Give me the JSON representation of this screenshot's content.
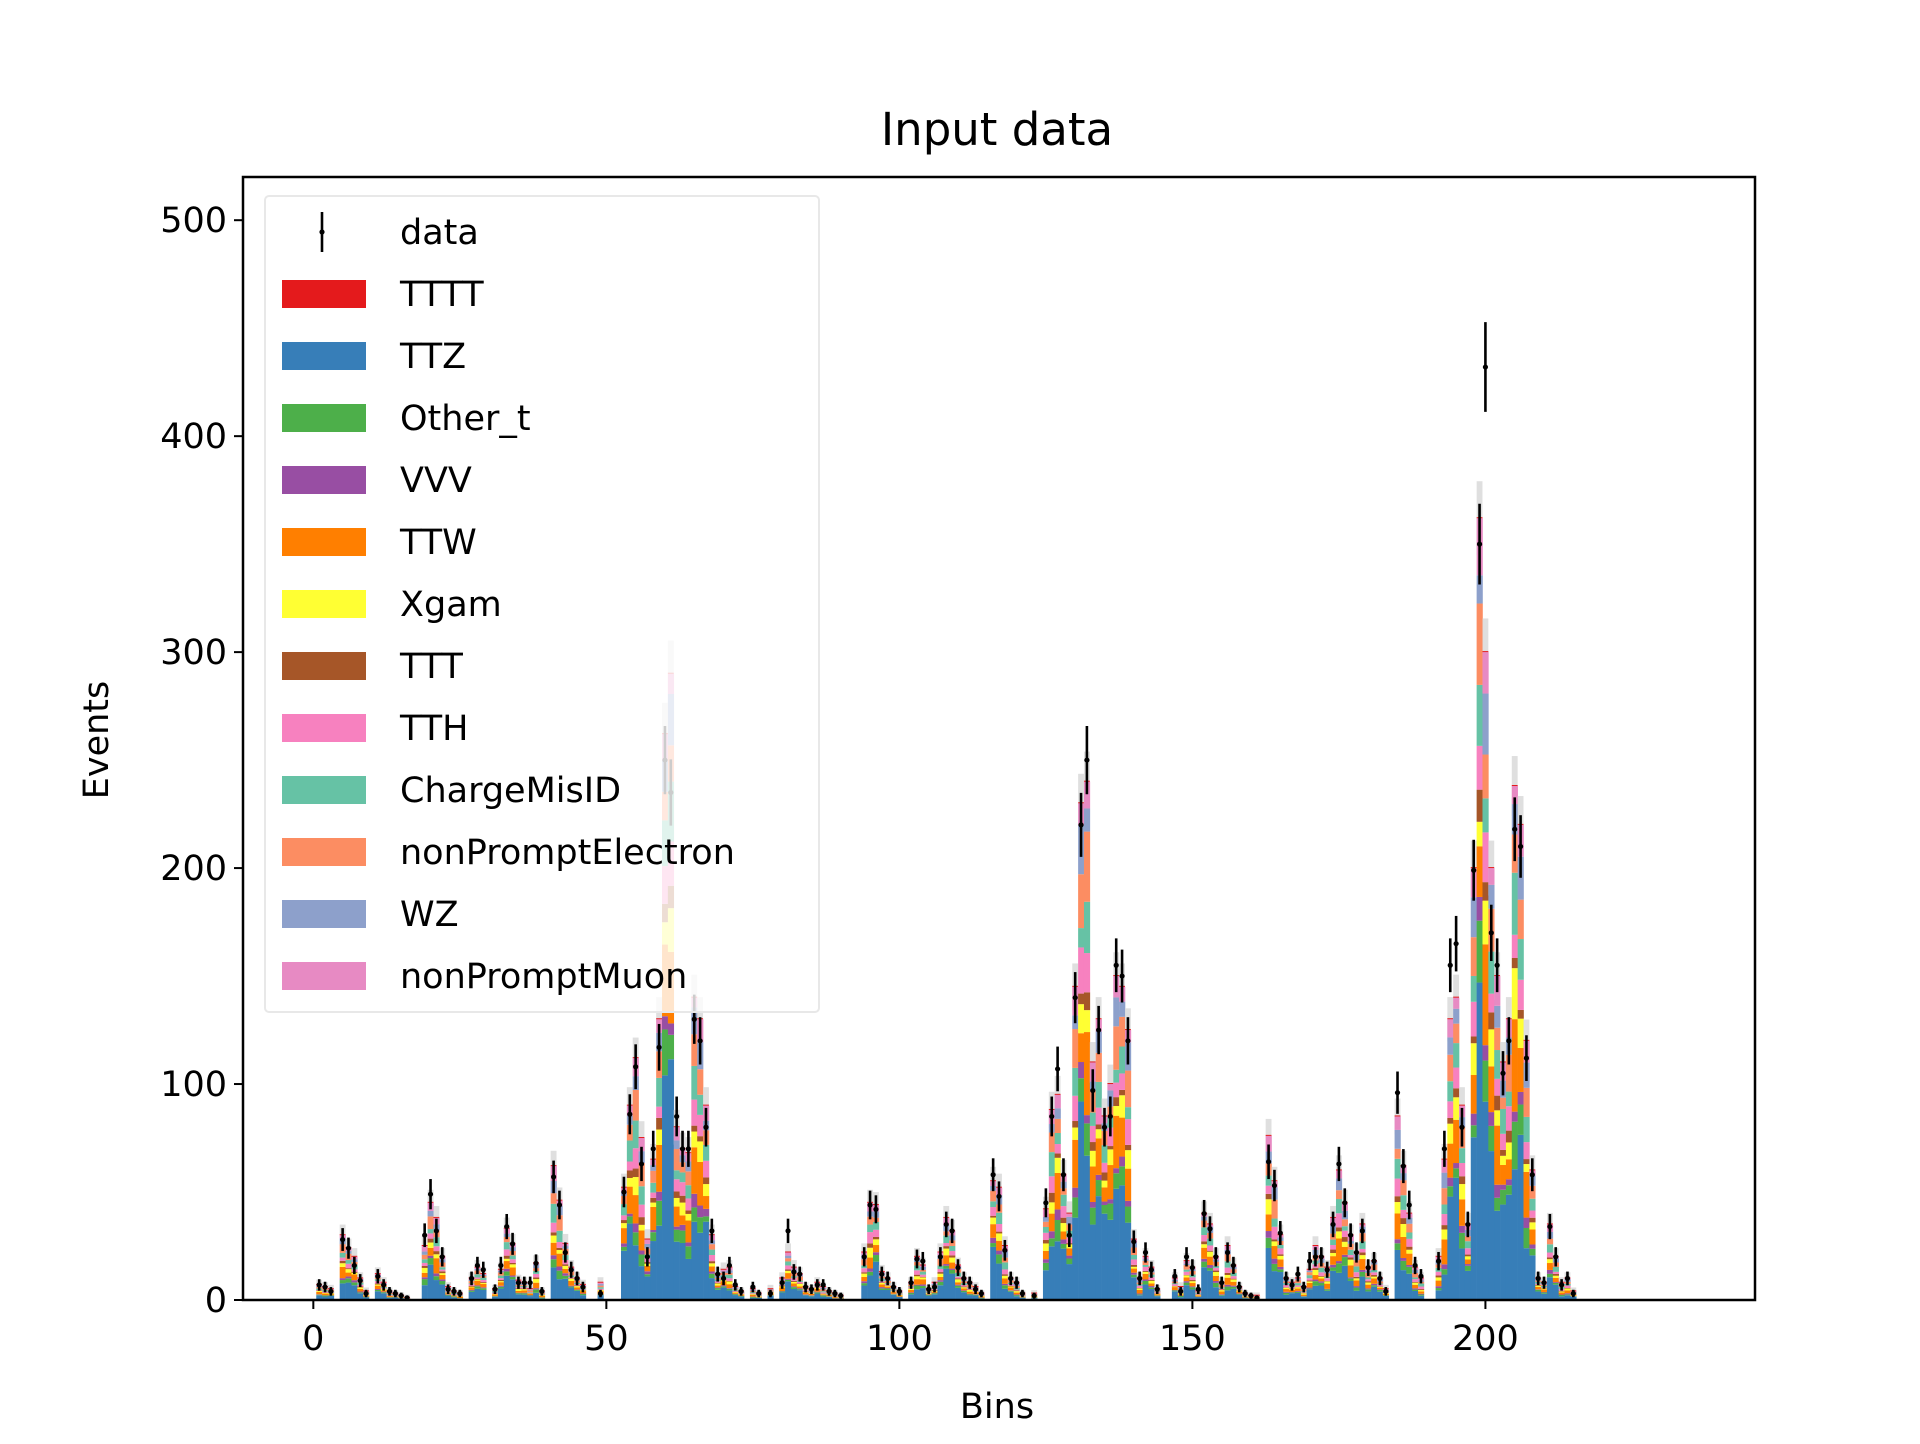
{
  "chart_data": {
    "type": "bar",
    "stacked": true,
    "title": "Input data",
    "xlabel": "Bins",
    "ylabel": "Events",
    "xlim": [
      -12,
      246
    ],
    "ylim": [
      0,
      520
    ],
    "xticks": [
      0,
      50,
      100,
      150,
      200
    ],
    "yticks": [
      0,
      100,
      200,
      300,
      400,
      500
    ],
    "grid": false,
    "legend_placement": "upper-left",
    "series": [
      {
        "name": "TTTT",
        "color": "#e41a1c"
      },
      {
        "name": "TTZ",
        "color": "#377eb8"
      },
      {
        "name": "Other_t",
        "color": "#4daf4a"
      },
      {
        "name": "VVV",
        "color": "#984ea3"
      },
      {
        "name": "TTW",
        "color": "#ff7f00"
      },
      {
        "name": "Xgam",
        "color": "#ffff33"
      },
      {
        "name": "TTT",
        "color": "#a65628"
      },
      {
        "name": "TTH",
        "color": "#f781bf"
      },
      {
        "name": "ChargeMisID",
        "color": "#66c2a5"
      },
      {
        "name": "nonPromptElectron",
        "color": "#fc8d62"
      },
      {
        "name": "WZ",
        "color": "#8da0cb"
      },
      {
        "name": "nonPromptMuon",
        "color": "#e78ac3"
      }
    ],
    "data_series": {
      "name": "data",
      "color": "#000000"
    },
    "uncertainty_band_color": "#d9d9d9",
    "bins": [
      {
        "x": 1,
        "total": 7,
        "data": 7
      },
      {
        "x": 2,
        "total": 6,
        "data": 6
      },
      {
        "x": 3,
        "total": 5,
        "data": 4
      },
      {
        "x": 5,
        "total": 30,
        "data": 28
      },
      {
        "x": 6,
        "total": 24,
        "data": 24
      },
      {
        "x": 7,
        "total": 20,
        "data": 16
      },
      {
        "x": 8,
        "total": 10,
        "data": 9
      },
      {
        "x": 9,
        "total": 4,
        "data": 3
      },
      {
        "x": 11,
        "total": 12,
        "data": 11
      },
      {
        "x": 12,
        "total": 8,
        "data": 7
      },
      {
        "x": 13,
        "total": 4,
        "data": 4
      },
      {
        "x": 14,
        "total": 3,
        "data": 3
      },
      {
        "x": 15,
        "total": 2,
        "data": 2
      },
      {
        "x": 16,
        "total": 1,
        "data": 1
      },
      {
        "x": 19,
        "total": 25,
        "data": 30
      },
      {
        "x": 20,
        "total": 45,
        "data": 49
      },
      {
        "x": 21,
        "total": 38,
        "data": 32
      },
      {
        "x": 22,
        "total": 20,
        "data": 20
      },
      {
        "x": 23,
        "total": 6,
        "data": 5
      },
      {
        "x": 24,
        "total": 4,
        "data": 4
      },
      {
        "x": 25,
        "total": 3,
        "data": 3
      },
      {
        "x": 27,
        "total": 10,
        "data": 10
      },
      {
        "x": 28,
        "total": 15,
        "data": 16
      },
      {
        "x": 29,
        "total": 12,
        "data": 14
      },
      {
        "x": 31,
        "total": 5,
        "data": 5
      },
      {
        "x": 32,
        "total": 14,
        "data": 16
      },
      {
        "x": 33,
        "total": 33,
        "data": 34
      },
      {
        "x": 34,
        "total": 26,
        "data": 26
      },
      {
        "x": 35,
        "total": 9,
        "data": 8
      },
      {
        "x": 36,
        "total": 8,
        "data": 8
      },
      {
        "x": 37,
        "total": 5,
        "data": 8
      },
      {
        "x": 38,
        "total": 17,
        "data": 17
      },
      {
        "x": 39,
        "total": 4,
        "data": 4
      },
      {
        "x": 41,
        "total": 62,
        "data": 57
      },
      {
        "x": 42,
        "total": 46,
        "data": 44
      },
      {
        "x": 43,
        "total": 26,
        "data": 22
      },
      {
        "x": 44,
        "total": 15,
        "data": 14
      },
      {
        "x": 45,
        "total": 10,
        "data": 10
      },
      {
        "x": 46,
        "total": 7,
        "data": 6
      },
      {
        "x": 49,
        "total": 8,
        "data": 3
      },
      {
        "x": 53,
        "total": 52,
        "data": 50
      },
      {
        "x": 54,
        "total": 90,
        "data": 86
      },
      {
        "x": 55,
        "total": 112,
        "data": 108
      },
      {
        "x": 56,
        "total": 75,
        "data": 63
      },
      {
        "x": 57,
        "total": 28,
        "data": 20
      },
      {
        "x": 58,
        "total": 65,
        "data": 70
      },
      {
        "x": 59,
        "total": 130,
        "data": 117
      },
      {
        "x": 60,
        "total": 262,
        "data": 250
      },
      {
        "x": 61,
        "total": 290,
        "data": 235
      },
      {
        "x": 62,
        "total": 80,
        "data": 85
      },
      {
        "x": 63,
        "total": 70,
        "data": 70
      },
      {
        "x": 64,
        "total": 68,
        "data": 70
      },
      {
        "x": 65,
        "total": 140,
        "data": 130
      },
      {
        "x": 66,
        "total": 130,
        "data": 120
      },
      {
        "x": 67,
        "total": 90,
        "data": 80
      },
      {
        "x": 68,
        "total": 30,
        "data": 32
      },
      {
        "x": 69,
        "total": 12,
        "data": 12
      },
      {
        "x": 70,
        "total": 14,
        "data": 10
      },
      {
        "x": 71,
        "total": 15,
        "data": 16
      },
      {
        "x": 72,
        "total": 6,
        "data": 7
      },
      {
        "x": 73,
        "total": 4,
        "data": 4
      },
      {
        "x": 75,
        "total": 5,
        "data": 6
      },
      {
        "x": 76,
        "total": 3,
        "data": 3
      },
      {
        "x": 78,
        "total": 5,
        "data": 3
      },
      {
        "x": 80,
        "total": 10,
        "data": 8
      },
      {
        "x": 81,
        "total": 22,
        "data": 32
      },
      {
        "x": 82,
        "total": 15,
        "data": 13
      },
      {
        "x": 83,
        "total": 12,
        "data": 12
      },
      {
        "x": 84,
        "total": 6,
        "data": 6
      },
      {
        "x": 85,
        "total": 5,
        "data": 5
      },
      {
        "x": 86,
        "total": 8,
        "data": 7
      },
      {
        "x": 87,
        "total": 6,
        "data": 7
      },
      {
        "x": 88,
        "total": 4,
        "data": 4
      },
      {
        "x": 89,
        "total": 3,
        "data": 3
      },
      {
        "x": 90,
        "total": 2,
        "data": 2
      },
      {
        "x": 94,
        "total": 22,
        "data": 20
      },
      {
        "x": 95,
        "total": 45,
        "data": 44
      },
      {
        "x": 96,
        "total": 44,
        "data": 42
      },
      {
        "x": 97,
        "total": 13,
        "data": 12
      },
      {
        "x": 98,
        "total": 10,
        "data": 10
      },
      {
        "x": 99,
        "total": 6,
        "data": 6
      },
      {
        "x": 100,
        "total": 4,
        "data": 4
      },
      {
        "x": 102,
        "total": 8,
        "data": 8
      },
      {
        "x": 103,
        "total": 20,
        "data": 19
      },
      {
        "x": 104,
        "total": 16,
        "data": 18
      },
      {
        "x": 105,
        "total": 5,
        "data": 5
      },
      {
        "x": 106,
        "total": 8,
        "data": 6
      },
      {
        "x": 107,
        "total": 22,
        "data": 20
      },
      {
        "x": 108,
        "total": 38,
        "data": 35
      },
      {
        "x": 109,
        "total": 32,
        "data": 32
      },
      {
        "x": 110,
        "total": 16,
        "data": 15
      },
      {
        "x": 111,
        "total": 10,
        "data": 10
      },
      {
        "x": 112,
        "total": 8,
        "data": 8
      },
      {
        "x": 113,
        "total": 6,
        "data": 5
      },
      {
        "x": 114,
        "total": 3,
        "data": 3
      },
      {
        "x": 116,
        "total": 55,
        "data": 58
      },
      {
        "x": 117,
        "total": 52,
        "data": 48
      },
      {
        "x": 118,
        "total": 25,
        "data": 23
      },
      {
        "x": 119,
        "total": 10,
        "data": 10
      },
      {
        "x": 120,
        "total": 8,
        "data": 8
      },
      {
        "x": 121,
        "total": 3,
        "data": 3
      },
      {
        "x": 123,
        "total": 3,
        "data": 2
      },
      {
        "x": 125,
        "total": 42,
        "data": 45
      },
      {
        "x": 126,
        "total": 88,
        "data": 85
      },
      {
        "x": 127,
        "total": 95,
        "data": 107
      },
      {
        "x": 128,
        "total": 58,
        "data": 58
      },
      {
        "x": 129,
        "total": 40,
        "data": 30
      },
      {
        "x": 130,
        "total": 145,
        "data": 140
      },
      {
        "x": 131,
        "total": 230,
        "data": 220
      },
      {
        "x": 132,
        "total": 240,
        "data": 250
      },
      {
        "x": 133,
        "total": 110,
        "data": 97
      },
      {
        "x": 134,
        "total": 130,
        "data": 125
      },
      {
        "x": 135,
        "total": 85,
        "data": 80
      },
      {
        "x": 136,
        "total": 100,
        "data": 85
      },
      {
        "x": 137,
        "total": 150,
        "data": 155
      },
      {
        "x": 138,
        "total": 145,
        "data": 150
      },
      {
        "x": 139,
        "total": 125,
        "data": 120
      },
      {
        "x": 140,
        "total": 28,
        "data": 27
      },
      {
        "x": 141,
        "total": 10,
        "data": 10
      },
      {
        "x": 142,
        "total": 20,
        "data": 22
      },
      {
        "x": 143,
        "total": 15,
        "data": 14
      },
      {
        "x": 144,
        "total": 5,
        "data": 5
      },
      {
        "x": 147,
        "total": 10,
        "data": 11
      },
      {
        "x": 148,
        "total": 6,
        "data": 4
      },
      {
        "x": 149,
        "total": 18,
        "data": 20
      },
      {
        "x": 150,
        "total": 15,
        "data": 15
      },
      {
        "x": 151,
        "total": 4,
        "data": 5
      },
      {
        "x": 152,
        "total": 40,
        "data": 40
      },
      {
        "x": 153,
        "total": 35,
        "data": 33
      },
      {
        "x": 154,
        "total": 20,
        "data": 20
      },
      {
        "x": 155,
        "total": 8,
        "data": 8
      },
      {
        "x": 156,
        "total": 25,
        "data": 22
      },
      {
        "x": 157,
        "total": 16,
        "data": 16
      },
      {
        "x": 158,
        "total": 6,
        "data": 6
      },
      {
        "x": 159,
        "total": 3,
        "data": 3
      },
      {
        "x": 160,
        "total": 2,
        "data": 2
      },
      {
        "x": 161,
        "total": 2,
        "data": 1
      },
      {
        "x": 163,
        "total": 76,
        "data": 64
      },
      {
        "x": 164,
        "total": 55,
        "data": 53
      },
      {
        "x": 165,
        "total": 30,
        "data": 31
      },
      {
        "x": 166,
        "total": 10,
        "data": 10
      },
      {
        "x": 167,
        "total": 8,
        "data": 7
      },
      {
        "x": 168,
        "total": 10,
        "data": 12
      },
      {
        "x": 169,
        "total": 6,
        "data": 6
      },
      {
        "x": 170,
        "total": 14,
        "data": 18
      },
      {
        "x": 171,
        "total": 25,
        "data": 20
      },
      {
        "x": 172,
        "total": 20,
        "data": 20
      },
      {
        "x": 173,
        "total": 15,
        "data": 14
      },
      {
        "x": 174,
        "total": 38,
        "data": 35
      },
      {
        "x": 175,
        "total": 60,
        "data": 63
      },
      {
        "x": 176,
        "total": 45,
        "data": 45
      },
      {
        "x": 177,
        "total": 30,
        "data": 30
      },
      {
        "x": 178,
        "total": 22,
        "data": 22
      },
      {
        "x": 179,
        "total": 35,
        "data": 32
      },
      {
        "x": 180,
        "total": 15,
        "data": 15
      },
      {
        "x": 181,
        "total": 18,
        "data": 18
      },
      {
        "x": 182,
        "total": 10,
        "data": 10
      },
      {
        "x": 183,
        "total": 5,
        "data": 4
      },
      {
        "x": 185,
        "total": 85,
        "data": 96
      },
      {
        "x": 186,
        "total": 62,
        "data": 62
      },
      {
        "x": 187,
        "total": 40,
        "data": 44
      },
      {
        "x": 188,
        "total": 15,
        "data": 16
      },
      {
        "x": 189,
        "total": 10,
        "data": 11
      },
      {
        "x": 192,
        "total": 20,
        "data": 18
      },
      {
        "x": 193,
        "total": 65,
        "data": 70
      },
      {
        "x": 194,
        "total": 130,
        "data": 155
      },
      {
        "x": 195,
        "total": 140,
        "data": 165
      },
      {
        "x": 196,
        "total": 90,
        "data": 80
      },
      {
        "x": 197,
        "total": 35,
        "data": 35
      },
      {
        "x": 198,
        "total": 200,
        "data": 199
      },
      {
        "x": 199,
        "total": 362,
        "data": 350
      },
      {
        "x": 200,
        "total": 300,
        "data": 432
      },
      {
        "x": 201,
        "total": 200,
        "data": 170
      },
      {
        "x": 202,
        "total": 150,
        "data": 155
      },
      {
        "x": 203,
        "total": 110,
        "data": 105
      },
      {
        "x": 204,
        "total": 130,
        "data": 120
      },
      {
        "x": 205,
        "total": 238,
        "data": 218
      },
      {
        "x": 206,
        "total": 220,
        "data": 210
      },
      {
        "x": 207,
        "total": 120,
        "data": 112
      },
      {
        "x": 208,
        "total": 60,
        "data": 58
      },
      {
        "x": 209,
        "total": 10,
        "data": 10
      },
      {
        "x": 210,
        "total": 8,
        "data": 8
      },
      {
        "x": 211,
        "total": 35,
        "data": 34
      },
      {
        "x": 212,
        "total": 20,
        "data": 20
      },
      {
        "x": 213,
        "total": 8,
        "data": 7
      },
      {
        "x": 214,
        "total": 10,
        "data": 10
      },
      {
        "x": 215,
        "total": 4,
        "data": 3
      }
    ]
  }
}
